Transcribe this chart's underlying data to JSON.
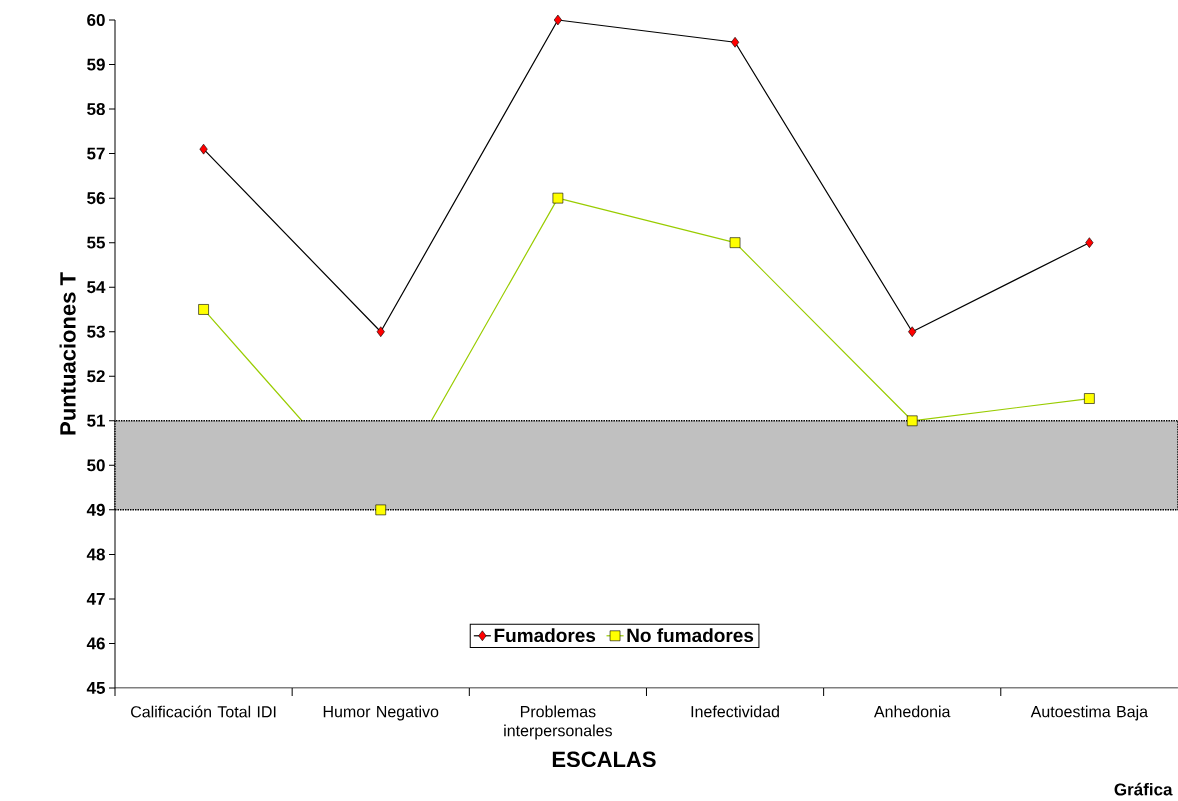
{
  "chart_data": {
    "type": "line",
    "xlabel": "ESCALAS",
    "ylabel": "Puntuaciones T",
    "categories": [
      "Calificación Total IDI",
      "Humor Negativo",
      "Problemas interpersonales",
      "Inefectividad",
      "Anhedonia",
      "Autoestima Baja"
    ],
    "series": [
      {
        "name": "Fumadores",
        "color": "#000000",
        "marker": "diamond",
        "values": [
          57.1,
          53,
          60,
          59.5,
          53,
          55
        ]
      },
      {
        "name": "No fumadores",
        "color": "#99cc00",
        "marker": "square",
        "values": [
          53.5,
          49,
          56,
          55,
          51,
          51.5
        ]
      }
    ],
    "ylim": [
      45,
      60
    ],
    "yticks": [
      45,
      46,
      47,
      48,
      49,
      50,
      51,
      52,
      53,
      54,
      55,
      56,
      57,
      58,
      59,
      60
    ],
    "bands": [
      {
        "axis": "y",
        "from": 49,
        "to": 51,
        "color": "#c0c0c0"
      }
    ],
    "legend": "bottom",
    "grid": false,
    "annotations": [
      "Gráfica"
    ]
  }
}
